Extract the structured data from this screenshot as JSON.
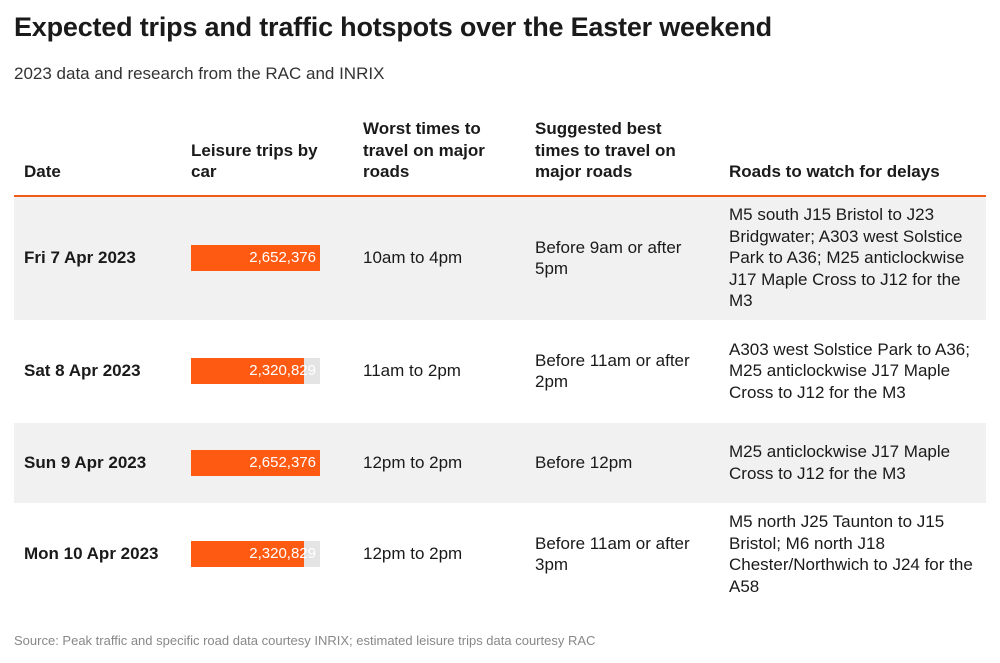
{
  "title": "Expected trips and traffic hotspots over the Easter weekend",
  "subtitle": "2023 data and research from the RAC and INRIX",
  "colors": {
    "accent": "#ff5a12",
    "rule": "#f05a1a",
    "row_shade": "#f1f1f1"
  },
  "table": {
    "headers": [
      "Date",
      "Leisure trips by car",
      "Worst times to travel on major roads",
      "Suggested best times to travel on major roads",
      "Roads to watch for delays"
    ],
    "bar_max": 2652376,
    "rows": [
      {
        "date": "Fri 7 Apr 2023",
        "trips": 2652376,
        "trips_label": "2,652,376",
        "worst": "10am to 4pm",
        "best": "Before 9am or after 5pm",
        "roads": "M5 south J15 Bristol to J23 Bridgwater; A303 west Solstice Park to A36; M25 anticlockwise J17 Maple Cross to J12 for the M3"
      },
      {
        "date": "Sat 8 Apr 2023",
        "trips": 2320829,
        "trips_label": "2,320,829",
        "worst": "11am to 2pm",
        "best": "Before 11am or after 2pm",
        "roads": "A303 west Solstice Park to A36; M25 anticlockwise J17 Maple Cross to J12 for the M3"
      },
      {
        "date": "Sun 9 Apr 2023",
        "trips": 2652376,
        "trips_label": "2,652,376",
        "worst": "12pm to 2pm",
        "best": "Before 12pm",
        "roads": "M25 anticlockwise J17 Maple Cross to J12 for the M3"
      },
      {
        "date": "Mon 10 Apr 2023",
        "trips": 2320829,
        "trips_label": "2,320,829",
        "worst": "12pm to 2pm",
        "best": "Before 11am or after 3pm",
        "roads": "M5 north J25 Taunton to J15 Bristol; M6 north J18 Chester/Northwich to J24 for the A58"
      }
    ]
  },
  "source": "Source: Peak traffic and specific road data courtesy INRIX; estimated leisure trips data courtesy RAC"
}
